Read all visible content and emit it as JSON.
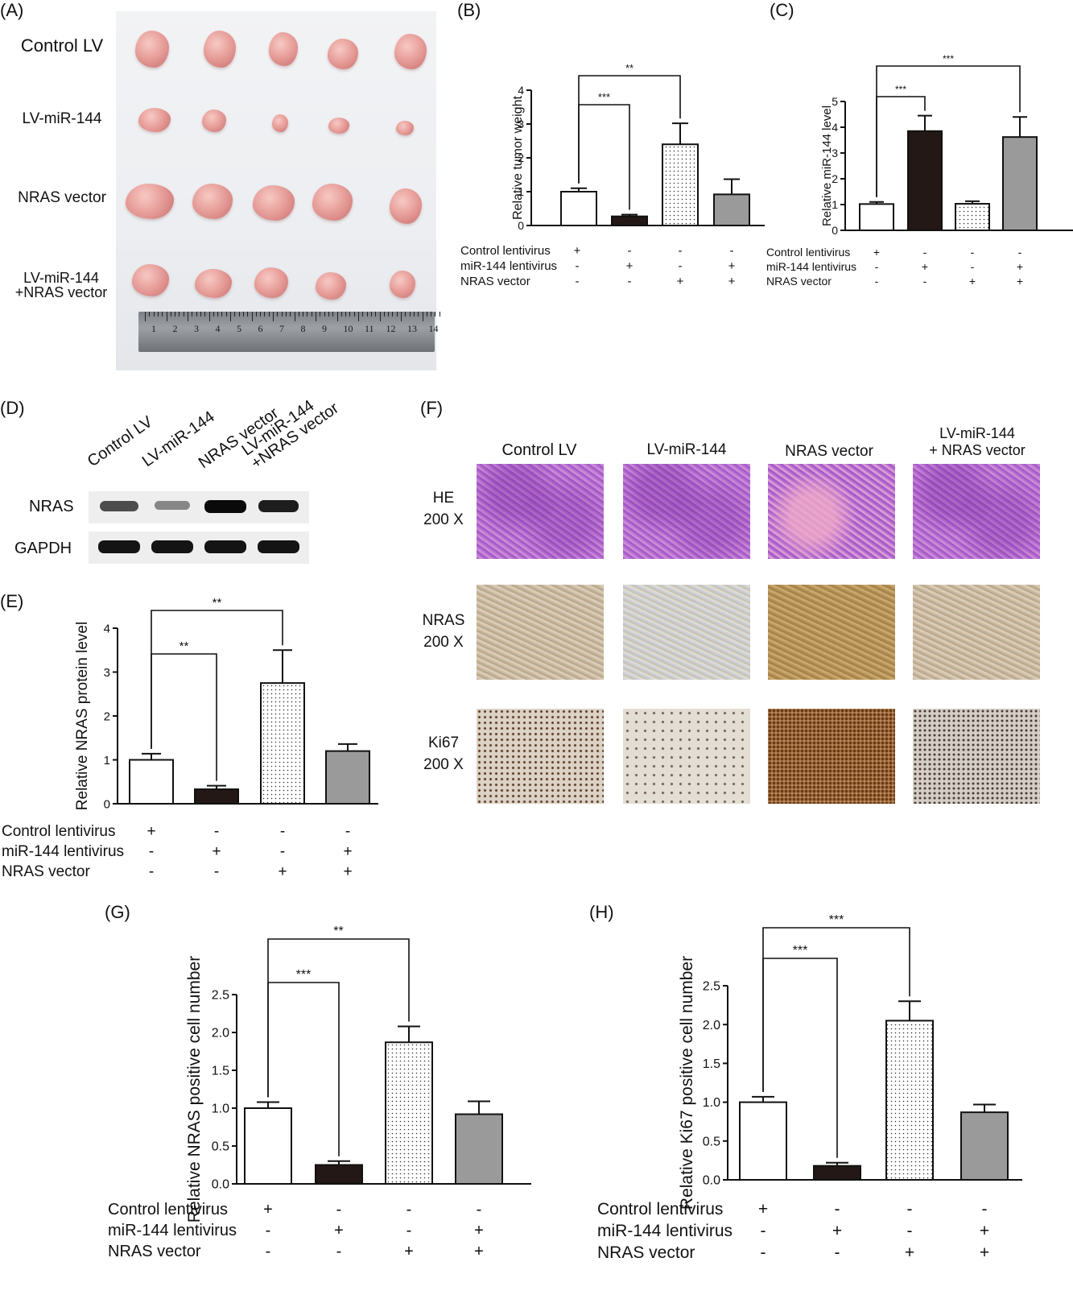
{
  "panels": {
    "A": "(A)",
    "B": "(B)",
    "C": "(C)",
    "D": "(D)",
    "E": "(E)",
    "F": "(F)",
    "G": "(G)",
    "H": "(H)"
  },
  "photo_a": {
    "rows": [
      "Control LV",
      "LV-miR-144",
      "NRAS vector",
      "LV-miR-144\n+NRAS vector"
    ],
    "ruler_numbers": [
      "1",
      "2",
      "3",
      "4",
      "5",
      "6",
      "7",
      "8",
      "9",
      "10",
      "11",
      "12",
      "13",
      "14"
    ]
  },
  "western_d": {
    "lanes": [
      "Control LV",
      "LV-miR-144",
      "NRAS vector",
      "LV-miR-144\n+NRAS vector"
    ],
    "rows": [
      "NRAS",
      "GAPDH"
    ],
    "band_intensity": {
      "NRAS": [
        0.65,
        0.35,
        1.0,
        0.9
      ],
      "GAPDH": [
        0.95,
        0.95,
        0.95,
        0.95
      ]
    }
  },
  "histology_f": {
    "columns": [
      "Control LV",
      "LV-miR-144",
      "NRAS vector",
      "LV-miR-144\n+ NRAS vector"
    ],
    "rows": [
      {
        "stain": "HE",
        "mag": "200 X"
      },
      {
        "stain": "NRAS",
        "mag": "200 X"
      },
      {
        "stain": "Ki67",
        "mag": "200 X"
      }
    ]
  },
  "conditions": {
    "row_labels": [
      "Control lentivirus",
      "miR-144 lentivirus",
      "NRAS vector"
    ],
    "signs": [
      [
        "+",
        "-",
        "-",
        "-"
      ],
      [
        "-",
        "+",
        "-",
        "+"
      ],
      [
        "-",
        "-",
        "+",
        "+"
      ]
    ]
  },
  "colors": {
    "bar_fills": [
      "#ffffff",
      "#231816",
      "dotted",
      "#9a9a9a"
    ]
  },
  "chart_data": [
    {
      "panel": "B",
      "type": "bar",
      "ylabel": "Relative tumor weight",
      "ylim": [
        0,
        4
      ],
      "yticks": [
        "0",
        "1",
        "2",
        "3",
        "4"
      ],
      "values": [
        1.0,
        0.27,
        2.4,
        0.92
      ],
      "errors": [
        0.1,
        0.05,
        0.62,
        0.45
      ],
      "significance": [
        {
          "from": 0,
          "to": 1,
          "label": "***"
        },
        {
          "from": 0,
          "to": 2,
          "label": "**"
        }
      ]
    },
    {
      "panel": "C",
      "type": "bar",
      "ylabel": "Relative miR-144 level",
      "ylim": [
        0,
        5
      ],
      "yticks": [
        "0",
        "1",
        "2",
        "3",
        "4",
        "5"
      ],
      "values": [
        1.02,
        3.85,
        1.03,
        3.62
      ],
      "errors": [
        0.08,
        0.6,
        0.1,
        0.78
      ],
      "significance": [
        {
          "from": 0,
          "to": 1,
          "label": "***"
        },
        {
          "from": 0,
          "to": 3,
          "label": "***"
        }
      ]
    },
    {
      "panel": "E",
      "type": "bar",
      "ylabel": "Relative NRAS protein level",
      "ylim": [
        0,
        4
      ],
      "yticks": [
        "0",
        "1",
        "2",
        "3",
        "4"
      ],
      "values": [
        1.0,
        0.33,
        2.75,
        1.2
      ],
      "errors": [
        0.14,
        0.08,
        0.75,
        0.16
      ],
      "significance": [
        {
          "from": 0,
          "to": 1,
          "label": "**"
        },
        {
          "from": 0,
          "to": 2,
          "label": "**"
        }
      ]
    },
    {
      "panel": "G",
      "type": "bar",
      "ylabel": "Relative NRAS positive cell number",
      "ylim": [
        0,
        2.5
      ],
      "yticks": [
        "0.0",
        "0.5",
        "1.0",
        "1.5",
        "2.0",
        "2.5"
      ],
      "values": [
        1.0,
        0.25,
        1.87,
        0.92
      ],
      "errors": [
        0.08,
        0.05,
        0.21,
        0.17
      ],
      "significance": [
        {
          "from": 0,
          "to": 1,
          "label": "***"
        },
        {
          "from": 0,
          "to": 2,
          "label": "**"
        }
      ]
    },
    {
      "panel": "H",
      "type": "bar",
      "ylabel": "Relative Ki67 positive cell number",
      "ylim": [
        0,
        2.5
      ],
      "yticks": [
        "0.0",
        "0.5",
        "1.0",
        "1.5",
        "2.0",
        "2.5"
      ],
      "values": [
        1.0,
        0.18,
        2.05,
        0.87
      ],
      "errors": [
        0.07,
        0.04,
        0.25,
        0.1
      ],
      "significance": [
        {
          "from": 0,
          "to": 1,
          "label": "***"
        },
        {
          "from": 0,
          "to": 2,
          "label": "***"
        }
      ]
    }
  ]
}
